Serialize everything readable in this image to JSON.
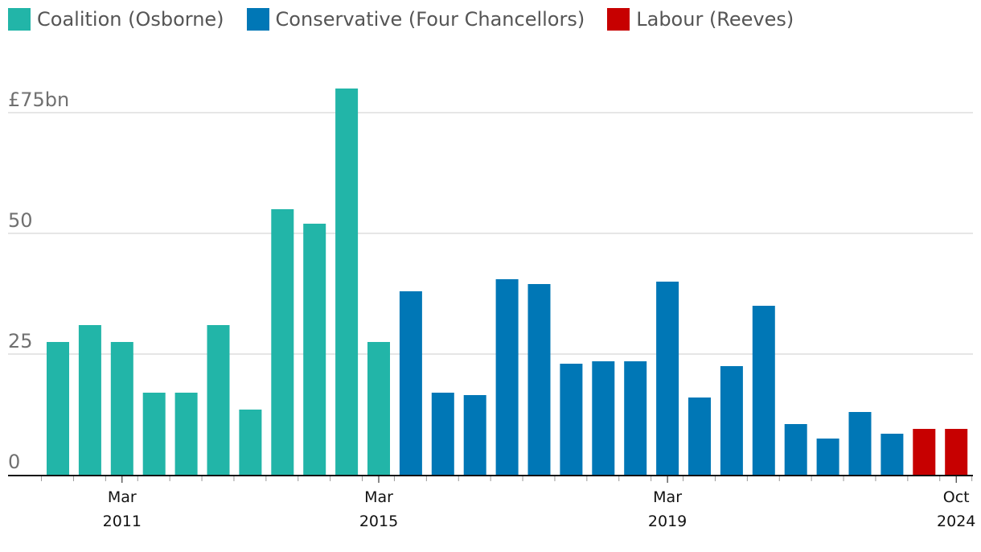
{
  "chart_data": {
    "type": "bar",
    "legend": [
      {
        "name": "Coalition (Osborne)",
        "color": "#22b5a8"
      },
      {
        "name": "Conservative (Four Chancellors)",
        "color": "#0077b6"
      },
      {
        "name": "Labour (Reeves)",
        "color": "#c70000"
      }
    ],
    "series_colors": {
      "coalition": "#22b5a8",
      "conservative": "#0077b6",
      "labour": "#c70000"
    },
    "y_unit_prefix": "£",
    "y_unit_suffix": "bn",
    "ylim": [
      0,
      75
    ],
    "yticks": [
      {
        "value": 0,
        "label": "0"
      },
      {
        "value": 25,
        "label": "25"
      },
      {
        "value": 50,
        "label": "50"
      },
      {
        "value": 75,
        "label": "£75bn"
      }
    ],
    "x_tick_labels": [
      {
        "index": 2,
        "month": "Mar",
        "year": "2011"
      },
      {
        "index": 10,
        "month": "Mar",
        "year": "2015"
      },
      {
        "index": 19,
        "month": "Mar",
        "year": "2019"
      },
      {
        "index": 28,
        "month": "Oct",
        "year": "2024"
      }
    ],
    "bars": [
      {
        "value": 27.5,
        "group": "coalition"
      },
      {
        "value": 31,
        "group": "coalition"
      },
      {
        "value": 27.5,
        "group": "coalition"
      },
      {
        "value": 17,
        "group": "coalition"
      },
      {
        "value": 17,
        "group": "coalition"
      },
      {
        "value": 31,
        "group": "coalition"
      },
      {
        "value": 13.5,
        "group": "coalition"
      },
      {
        "value": 55,
        "group": "coalition"
      },
      {
        "value": 52,
        "group": "coalition"
      },
      {
        "value": 80,
        "group": "coalition"
      },
      {
        "value": 27.5,
        "group": "coalition"
      },
      {
        "value": 38,
        "group": "conservative"
      },
      {
        "value": 17,
        "group": "conservative"
      },
      {
        "value": 16.5,
        "group": "conservative"
      },
      {
        "value": 40.5,
        "group": "conservative"
      },
      {
        "value": 39.5,
        "group": "conservative"
      },
      {
        "value": 23,
        "group": "conservative"
      },
      {
        "value": 23.5,
        "group": "conservative"
      },
      {
        "value": 23.5,
        "group": "conservative"
      },
      {
        "value": 40,
        "group": "conservative"
      },
      {
        "value": 16,
        "group": "conservative"
      },
      {
        "value": 22.5,
        "group": "conservative"
      },
      {
        "value": 35,
        "group": "conservative"
      },
      {
        "value": 10.5,
        "group": "conservative"
      },
      {
        "value": 7.5,
        "group": "conservative"
      },
      {
        "value": 13,
        "group": "conservative"
      },
      {
        "value": 8.5,
        "group": "conservative"
      },
      {
        "value": 9.5,
        "group": "labour"
      },
      {
        "value": 9.5,
        "group": "labour"
      }
    ],
    "grid": true,
    "legend_position": "top-left"
  }
}
